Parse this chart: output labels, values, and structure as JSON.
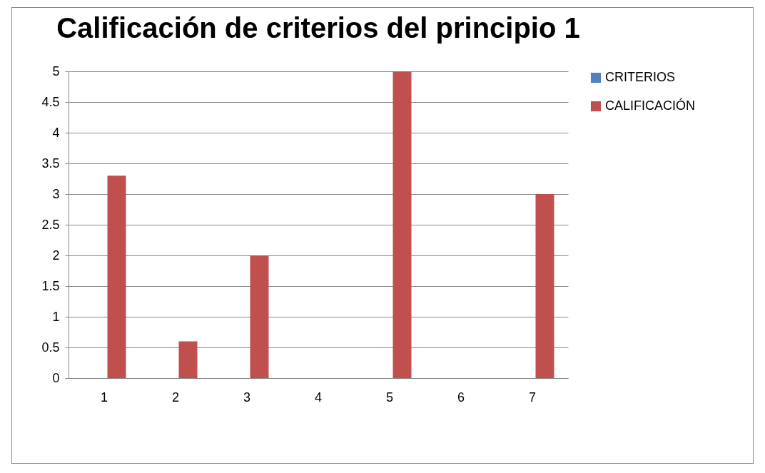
{
  "chart_data": {
    "type": "bar",
    "title": "Calificación de criterios del principio 1",
    "categories": [
      "1",
      "2",
      "3",
      "4",
      "5",
      "6",
      "7"
    ],
    "series": [
      {
        "name": "CRITERIOS",
        "color": "#4f81bd",
        "values": [
          0,
          0,
          0,
          0,
          0,
          0,
          0
        ]
      },
      {
        "name": "CALIFICACIÓN",
        "color": "#c0504d",
        "values": [
          3.3,
          0.6,
          2,
          0,
          5,
          0,
          3
        ]
      }
    ],
    "ylim": [
      0,
      5
    ],
    "yticks": [
      0,
      0.5,
      1,
      1.5,
      2,
      2.5,
      3,
      3.5,
      4,
      4.5,
      5
    ],
    "grid": "y",
    "legend": "right"
  }
}
